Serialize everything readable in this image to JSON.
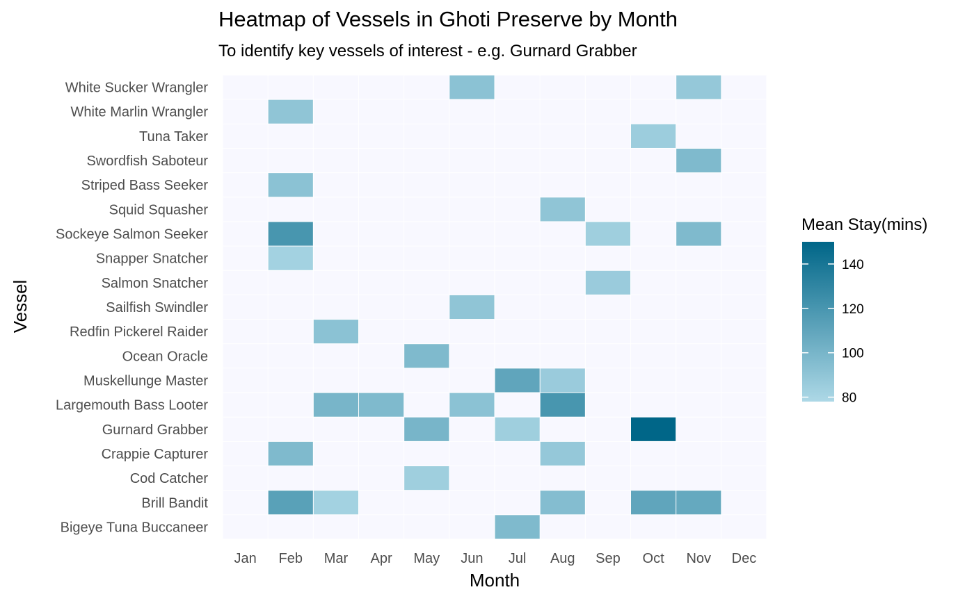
{
  "chart_data": {
    "type": "heatmap",
    "title": "Heatmap of Vessels in Ghoti Preserve by Month",
    "subtitle": "To identify key vessels of interest - e.g. Gurnard Grabber",
    "xlabel": "Month",
    "ylabel": "Vessel",
    "x_categories": [
      "Jan",
      "Feb",
      "Mar",
      "Apr",
      "May",
      "Jun",
      "Jul",
      "Aug",
      "Sep",
      "Oct",
      "Nov",
      "Dec"
    ],
    "y_categories": [
      "White Sucker Wrangler",
      "White Marlin Wrangler",
      "Tuna Taker",
      "Swordfish Saboteur",
      "Striped Bass Seeker",
      "Squid Squasher",
      "Sockeye Salmon Seeker",
      "Snapper Snatcher",
      "Salmon Snatcher",
      "Sailfish Swindler",
      "Redfin Pickerel Raider",
      "Ocean Oracle",
      "Muskellunge Master",
      "Largemouth Bass Looter",
      "Gurnard Grabber",
      "Crappie Capturer",
      "Cod Catcher",
      "Brill Bandit",
      "Bigeye Tuna Buccaneer"
    ],
    "cells": [
      {
        "vessel": "White Sucker Wrangler",
        "month": "Jun",
        "value": 92
      },
      {
        "vessel": "White Sucker Wrangler",
        "month": "Nov",
        "value": 88
      },
      {
        "vessel": "White Marlin Wrangler",
        "month": "Feb",
        "value": 90
      },
      {
        "vessel": "Tuna Taker",
        "month": "Oct",
        "value": 85
      },
      {
        "vessel": "Swordfish Saboteur",
        "month": "Nov",
        "value": 97
      },
      {
        "vessel": "Striped Bass Seeker",
        "month": "Feb",
        "value": 92
      },
      {
        "vessel": "Squid Squasher",
        "month": "Aug",
        "value": 90
      },
      {
        "vessel": "Sockeye Salmon Seeker",
        "month": "Feb",
        "value": 120
      },
      {
        "vessel": "Sockeye Salmon Seeker",
        "month": "Sep",
        "value": 84
      },
      {
        "vessel": "Sockeye Salmon Seeker",
        "month": "Nov",
        "value": 97
      },
      {
        "vessel": "Snapper Snatcher",
        "month": "Feb",
        "value": 82
      },
      {
        "vessel": "Salmon Snatcher",
        "month": "Sep",
        "value": 86
      },
      {
        "vessel": "Sailfish Swindler",
        "month": "Jun",
        "value": 90
      },
      {
        "vessel": "Redfin Pickerel Raider",
        "month": "Mar",
        "value": 92
      },
      {
        "vessel": "Ocean Oracle",
        "month": "May",
        "value": 97
      },
      {
        "vessel": "Muskellunge Master",
        "month": "Jul",
        "value": 110
      },
      {
        "vessel": "Muskellunge Master",
        "month": "Aug",
        "value": 86
      },
      {
        "vessel": "Largemouth Bass Looter",
        "month": "Mar",
        "value": 100
      },
      {
        "vessel": "Largemouth Bass Looter",
        "month": "Apr",
        "value": 97
      },
      {
        "vessel": "Largemouth Bass Looter",
        "month": "Jun",
        "value": 92
      },
      {
        "vessel": "Largemouth Bass Looter",
        "month": "Aug",
        "value": 120
      },
      {
        "vessel": "Gurnard Grabber",
        "month": "May",
        "value": 100
      },
      {
        "vessel": "Gurnard Grabber",
        "month": "Jul",
        "value": 84
      },
      {
        "vessel": "Gurnard Grabber",
        "month": "Oct",
        "value": 150
      },
      {
        "vessel": "Crappie Capturer",
        "month": "Feb",
        "value": 97
      },
      {
        "vessel": "Crappie Capturer",
        "month": "Aug",
        "value": 88
      },
      {
        "vessel": "Cod Catcher",
        "month": "May",
        "value": 84
      },
      {
        "vessel": "Brill Bandit",
        "month": "Feb",
        "value": 113
      },
      {
        "vessel": "Brill Bandit",
        "month": "Mar",
        "value": 82
      },
      {
        "vessel": "Brill Bandit",
        "month": "Aug",
        "value": 95
      },
      {
        "vessel": "Brill Bandit",
        "month": "Oct",
        "value": 110
      },
      {
        "vessel": "Brill Bandit",
        "month": "Nov",
        "value": 108
      },
      {
        "vessel": "Bigeye Tuna Buccaneer",
        "month": "Jul",
        "value": 97
      }
    ],
    "legend": {
      "title": "Mean Stay(mins)",
      "ticks": [
        80,
        100,
        120,
        140
      ],
      "range": [
        78,
        150
      ],
      "low_color": "#ADD8E6",
      "high_color": "#006688"
    },
    "background_color": "#F8F8FF",
    "grid": true
  }
}
